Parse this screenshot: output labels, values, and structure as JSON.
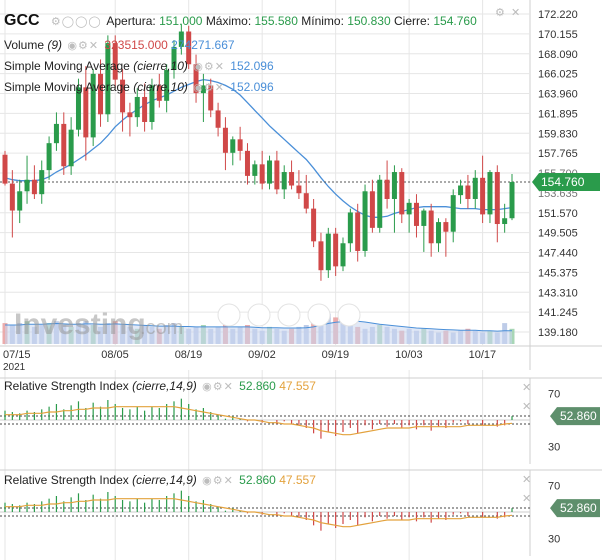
{
  "header": {
    "symbol": "GCC",
    "open_label": "Apertura:",
    "open": "151.000",
    "high_label": "Máximo:",
    "high": "155.580",
    "low_label": "Mínimo:",
    "low": "150.830",
    "close_label": "Cierre:",
    "close": "154.760"
  },
  "legend": {
    "volume_label": "Volume",
    "volume_param": "(9)",
    "volume_value": "323515.000",
    "volume_ma": "274271.667",
    "sma1_label": "Simple Moving Average",
    "sma1_param": "(cierre,10)",
    "sma1_value": "152.096",
    "sma2_label": "Simple Moving Average",
    "sma2_param": "(cierre,10)",
    "sma2_value": "152.096"
  },
  "rsi": [
    {
      "label": "Relative Strength Index",
      "param": "(cierre,14,9)",
      "value": "52.860",
      "signal": "47.557",
      "tag": "52.860",
      "tick_top": "70",
      "tick_bottom": "30"
    },
    {
      "label": "Relative Strength Index",
      "param": "(cierre,14,9)",
      "value": "52.860",
      "signal": "47.557",
      "tag": "52.860",
      "tick_top": "70",
      "tick_bottom": "30"
    }
  ],
  "watermark": {
    "brand": "Investing",
    "suffix": ".com"
  },
  "price_tag": "154.760",
  "colors": {
    "up": "#2a9b4b",
    "down": "#d04848",
    "sma": "#4a8fd8",
    "signal": "#e3a23d",
    "volume": "#b7c7e6",
    "grid": "#e6e6e6",
    "tag_green": "#2a9b4b",
    "rsi_tag": "#5e8f6c"
  },
  "chart_data": [
    {
      "type": "candlestick",
      "title": "GCC",
      "y_ticks": [
        "172.220",
        "170.155",
        "168.090",
        "166.025",
        "163.960",
        "161.895",
        "159.830",
        "157.765",
        "155.700",
        "153.635",
        "151.570",
        "149.505",
        "147.440",
        "145.375",
        "143.310",
        "141.245",
        "139.180"
      ],
      "x_ticks": [
        {
          "label": "07/15",
          "sub": "2021",
          "index": 0
        },
        {
          "label": "08/05",
          "index": 15
        },
        {
          "label": "08/19",
          "index": 25
        },
        {
          "label": "09/02",
          "index": 35
        },
        {
          "label": "09/19",
          "index": 45
        },
        {
          "label": "10/03",
          "index": 55
        },
        {
          "label": "10/17",
          "index": 65
        }
      ],
      "ylim": [
        137.0,
        173.2
      ],
      "last_price": 154.76,
      "candles": [
        {
          "o": 157.6,
          "h": 158.0,
          "l": 154.4,
          "c": 154.6
        },
        {
          "o": 154.6,
          "h": 156.0,
          "l": 149.0,
          "c": 151.8
        },
        {
          "o": 151.8,
          "h": 155.0,
          "l": 150.5,
          "c": 153.8
        },
        {
          "o": 153.8,
          "h": 157.5,
          "l": 152.5,
          "c": 155.0
        },
        {
          "o": 155.0,
          "h": 156.5,
          "l": 153.0,
          "c": 153.5
        },
        {
          "o": 153.5,
          "h": 157.0,
          "l": 152.5,
          "c": 156.0
        },
        {
          "o": 156.0,
          "h": 159.5,
          "l": 155.0,
          "c": 158.8
        },
        {
          "o": 158.8,
          "h": 162.0,
          "l": 158.0,
          "c": 160.8
        },
        {
          "o": 160.8,
          "h": 162.0,
          "l": 155.5,
          "c": 156.4
        },
        {
          "o": 156.4,
          "h": 161.5,
          "l": 155.5,
          "c": 160.2
        },
        {
          "o": 160.2,
          "h": 165.5,
          "l": 159.5,
          "c": 164.6
        },
        {
          "o": 164.6,
          "h": 166.8,
          "l": 157.0,
          "c": 159.4
        },
        {
          "o": 159.4,
          "h": 166.5,
          "l": 158.5,
          "c": 166.0
        },
        {
          "o": 166.0,
          "h": 167.5,
          "l": 160.5,
          "c": 161.8
        },
        {
          "o": 161.8,
          "h": 170.0,
          "l": 161.0,
          "c": 169.2
        },
        {
          "o": 169.2,
          "h": 170.0,
          "l": 164.5,
          "c": 165.4
        },
        {
          "o": 165.4,
          "h": 166.5,
          "l": 160.0,
          "c": 162.0
        },
        {
          "o": 162.0,
          "h": 163.0,
          "l": 159.5,
          "c": 161.5
        },
        {
          "o": 161.5,
          "h": 164.5,
          "l": 160.5,
          "c": 163.6
        },
        {
          "o": 163.6,
          "h": 165.0,
          "l": 160.0,
          "c": 161.0
        },
        {
          "o": 161.0,
          "h": 165.5,
          "l": 160.2,
          "c": 164.8
        },
        {
          "o": 164.8,
          "h": 166.0,
          "l": 162.5,
          "c": 163.2
        },
        {
          "o": 163.2,
          "h": 167.0,
          "l": 162.0,
          "c": 166.4
        },
        {
          "o": 166.4,
          "h": 169.5,
          "l": 165.5,
          "c": 168.8
        },
        {
          "o": 168.8,
          "h": 171.2,
          "l": 168.0,
          "c": 170.4
        },
        {
          "o": 170.4,
          "h": 171.0,
          "l": 166.5,
          "c": 167.0
        },
        {
          "o": 167.0,
          "h": 168.0,
          "l": 163.0,
          "c": 164.0
        },
        {
          "o": 164.0,
          "h": 166.0,
          "l": 161.0,
          "c": 164.8
        },
        {
          "o": 164.8,
          "h": 165.5,
          "l": 161.5,
          "c": 162.2
        },
        {
          "o": 162.2,
          "h": 163.0,
          "l": 159.5,
          "c": 160.4
        },
        {
          "o": 160.4,
          "h": 161.5,
          "l": 156.0,
          "c": 157.8
        },
        {
          "o": 157.8,
          "h": 159.5,
          "l": 156.5,
          "c": 159.2
        },
        {
          "o": 159.2,
          "h": 160.5,
          "l": 157.0,
          "c": 158.0
        },
        {
          "o": 158.0,
          "h": 158.8,
          "l": 154.5,
          "c": 155.4
        },
        {
          "o": 155.4,
          "h": 157.0,
          "l": 154.5,
          "c": 156.6
        },
        {
          "o": 156.6,
          "h": 158.0,
          "l": 154.0,
          "c": 154.6
        },
        {
          "o": 154.6,
          "h": 157.5,
          "l": 154.0,
          "c": 157.0
        },
        {
          "o": 157.0,
          "h": 158.0,
          "l": 153.5,
          "c": 154.0
        },
        {
          "o": 154.0,
          "h": 156.5,
          "l": 153.0,
          "c": 155.8
        },
        {
          "o": 155.8,
          "h": 157.0,
          "l": 154.0,
          "c": 154.4
        },
        {
          "o": 154.4,
          "h": 156.0,
          "l": 153.0,
          "c": 153.6
        },
        {
          "o": 153.6,
          "h": 155.5,
          "l": 151.5,
          "c": 152.0
        },
        {
          "o": 152.0,
          "h": 153.0,
          "l": 148.0,
          "c": 148.6
        },
        {
          "o": 148.6,
          "h": 149.5,
          "l": 144.5,
          "c": 145.6
        },
        {
          "o": 145.6,
          "h": 150.0,
          "l": 144.8,
          "c": 149.4
        },
        {
          "o": 149.4,
          "h": 150.0,
          "l": 145.0,
          "c": 146.0
        },
        {
          "o": 146.0,
          "h": 149.0,
          "l": 145.5,
          "c": 148.4
        },
        {
          "o": 148.4,
          "h": 152.0,
          "l": 147.5,
          "c": 151.6
        },
        {
          "o": 151.6,
          "h": 152.5,
          "l": 146.5,
          "c": 147.6
        },
        {
          "o": 147.6,
          "h": 154.5,
          "l": 147.0,
          "c": 153.8
        },
        {
          "o": 153.8,
          "h": 155.0,
          "l": 149.5,
          "c": 150.0
        },
        {
          "o": 150.0,
          "h": 155.5,
          "l": 149.5,
          "c": 155.0
        },
        {
          "o": 155.0,
          "h": 157.0,
          "l": 152.0,
          "c": 153.0
        },
        {
          "o": 153.0,
          "h": 156.5,
          "l": 149.5,
          "c": 155.8
        },
        {
          "o": 155.8,
          "h": 156.2,
          "l": 150.5,
          "c": 151.4
        },
        {
          "o": 151.4,
          "h": 153.0,
          "l": 149.5,
          "c": 152.6
        },
        {
          "o": 152.6,
          "h": 153.5,
          "l": 149.0,
          "c": 150.2
        },
        {
          "o": 150.2,
          "h": 152.0,
          "l": 147.5,
          "c": 151.8
        },
        {
          "o": 151.8,
          "h": 152.5,
          "l": 147.0,
          "c": 148.4
        },
        {
          "o": 148.4,
          "h": 151.0,
          "l": 147.5,
          "c": 150.6
        },
        {
          "o": 150.6,
          "h": 151.0,
          "l": 147.0,
          "c": 149.6
        },
        {
          "o": 149.6,
          "h": 154.0,
          "l": 148.5,
          "c": 153.4
        },
        {
          "o": 153.4,
          "h": 155.0,
          "l": 152.5,
          "c": 154.4
        },
        {
          "o": 154.4,
          "h": 155.5,
          "l": 152.0,
          "c": 153.0
        },
        {
          "o": 153.0,
          "h": 156.0,
          "l": 152.0,
          "c": 155.2
        },
        {
          "o": 155.2,
          "h": 157.5,
          "l": 150.5,
          "c": 151.4
        },
        {
          "o": 151.4,
          "h": 156.0,
          "l": 150.5,
          "c": 155.8
        },
        {
          "o": 155.8,
          "h": 156.5,
          "l": 148.5,
          "c": 150.4
        },
        {
          "o": 150.4,
          "h": 152.5,
          "l": 149.5,
          "c": 151.0
        },
        {
          "o": 151.0,
          "h": 155.6,
          "l": 150.8,
          "c": 154.76
        }
      ],
      "sma": [
        155.2,
        155.0,
        154.9,
        154.9,
        154.9,
        155.0,
        155.3,
        155.8,
        156.2,
        156.6,
        157.1,
        157.6,
        158.2,
        158.8,
        159.6,
        160.5,
        161.2,
        161.8,
        162.3,
        162.8,
        163.2,
        163.5,
        163.8,
        164.2,
        164.6,
        164.9,
        165.2,
        165.4,
        165.3,
        165.1,
        164.8,
        164.4,
        163.8,
        163.0,
        162.2,
        161.4,
        160.6,
        159.9,
        159.2,
        158.5,
        157.8,
        157.1,
        156.2,
        155.2,
        154.3,
        153.5,
        152.8,
        152.2,
        151.7,
        151.3,
        151.1,
        151.1,
        151.2,
        151.5,
        151.7,
        151.9,
        152.1,
        152.2,
        152.2,
        152.2,
        152.2,
        152.1,
        152.0,
        152.0,
        152.0,
        151.9,
        151.9,
        151.9,
        152.0,
        152.1
      ],
      "volume": [
        0.55,
        0.5,
        0.55,
        0.6,
        0.45,
        0.5,
        0.55,
        0.6,
        0.5,
        0.45,
        0.55,
        0.6,
        0.5,
        0.45,
        0.55,
        0.6,
        0.5,
        0.45,
        0.4,
        0.5,
        0.45,
        0.4,
        0.5,
        0.55,
        0.45,
        0.4,
        0.45,
        0.5,
        0.4,
        0.45,
        0.5,
        0.4,
        0.45,
        0.5,
        0.4,
        0.35,
        0.45,
        0.4,
        0.35,
        0.4,
        0.45,
        0.5,
        0.6,
        0.95,
        0.8,
        0.7,
        0.55,
        0.5,
        0.45,
        0.4,
        0.45,
        0.5,
        0.45,
        0.4,
        0.35,
        0.4,
        0.35,
        0.4,
        0.35,
        0.3,
        0.35,
        0.3,
        0.35,
        0.4,
        0.35,
        0.3,
        0.35,
        0.3,
        0.55,
        0.4
      ],
      "volume_ma": [
        0.5,
        0.5,
        0.5,
        0.52,
        0.52,
        0.52,
        0.53,
        0.54,
        0.53,
        0.52,
        0.52,
        0.53,
        0.53,
        0.52,
        0.52,
        0.53,
        0.52,
        0.51,
        0.5,
        0.49,
        0.48,
        0.47,
        0.47,
        0.47,
        0.46,
        0.46,
        0.45,
        0.45,
        0.45,
        0.45,
        0.45,
        0.45,
        0.45,
        0.45,
        0.44,
        0.43,
        0.43,
        0.43,
        0.42,
        0.42,
        0.42,
        0.43,
        0.45,
        0.5,
        0.54,
        0.57,
        0.59,
        0.6,
        0.6,
        0.58,
        0.55,
        0.52,
        0.5,
        0.48,
        0.46,
        0.44,
        0.42,
        0.41,
        0.4,
        0.39,
        0.38,
        0.37,
        0.36,
        0.36,
        0.36,
        0.35,
        0.35,
        0.34,
        0.35,
        0.35
      ]
    },
    {
      "type": "histogram",
      "title": "Relative Strength Index (cierre,14,9)",
      "ylim": [
        20,
        80
      ],
      "ticks": [
        "70",
        "30"
      ],
      "values": [
        57,
        56,
        55,
        57,
        56,
        58,
        60,
        62,
        58,
        61,
        64,
        59,
        63,
        60,
        65,
        62,
        59,
        58,
        60,
        57,
        60,
        59,
        62,
        64,
        66,
        62,
        58,
        59,
        56,
        54,
        51,
        53,
        51,
        49,
        50,
        48,
        50,
        47,
        49,
        47,
        46,
        44,
        40,
        36,
        41,
        38,
        41,
        44,
        40,
        46,
        43,
        47,
        45,
        47,
        44,
        46,
        43,
        46,
        42,
        45,
        44,
        48,
        49,
        47,
        50,
        46,
        50,
        45,
        46,
        52.86
      ],
      "signal": [
        54,
        54,
        54,
        55,
        55,
        55,
        56,
        56,
        57,
        57,
        58,
        58,
        59,
        59,
        59,
        60,
        60,
        60,
        60,
        60,
        60,
        60,
        60,
        60,
        59,
        58,
        57,
        56,
        55,
        54,
        53,
        52,
        51,
        50,
        50,
        49,
        48,
        48,
        47,
        47,
        46,
        45,
        44,
        42,
        41,
        40,
        39,
        39,
        40,
        41,
        42,
        43,
        44,
        44,
        44,
        44,
        45,
        45,
        45,
        45,
        45,
        45,
        45,
        46,
        46,
        46,
        46,
        46,
        47,
        47.557
      ]
    },
    {
      "type": "histogram",
      "title": "Relative Strength Index (cierre,14,9)",
      "ylim": [
        20,
        80
      ],
      "ticks": [
        "70",
        "30"
      ],
      "values": [
        57,
        56,
        55,
        57,
        56,
        58,
        60,
        62,
        58,
        61,
        64,
        59,
        63,
        60,
        65,
        62,
        59,
        58,
        60,
        57,
        60,
        59,
        62,
        64,
        66,
        62,
        58,
        59,
        56,
        54,
        51,
        53,
        51,
        49,
        50,
        48,
        50,
        47,
        49,
        47,
        46,
        44,
        40,
        36,
        41,
        38,
        41,
        44,
        40,
        46,
        43,
        47,
        45,
        47,
        44,
        46,
        43,
        46,
        42,
        45,
        44,
        48,
        49,
        47,
        50,
        46,
        50,
        45,
        46,
        52.86
      ],
      "signal": [
        54,
        54,
        54,
        55,
        55,
        55,
        56,
        56,
        57,
        57,
        58,
        58,
        59,
        59,
        59,
        60,
        60,
        60,
        60,
        60,
        60,
        60,
        60,
        60,
        59,
        58,
        57,
        56,
        55,
        54,
        53,
        52,
        51,
        50,
        50,
        49,
        48,
        48,
        47,
        47,
        46,
        45,
        44,
        42,
        41,
        40,
        39,
        39,
        40,
        41,
        42,
        43,
        44,
        44,
        44,
        44,
        45,
        45,
        45,
        45,
        45,
        45,
        45,
        46,
        46,
        46,
        46,
        46,
        47,
        47.557
      ]
    }
  ]
}
